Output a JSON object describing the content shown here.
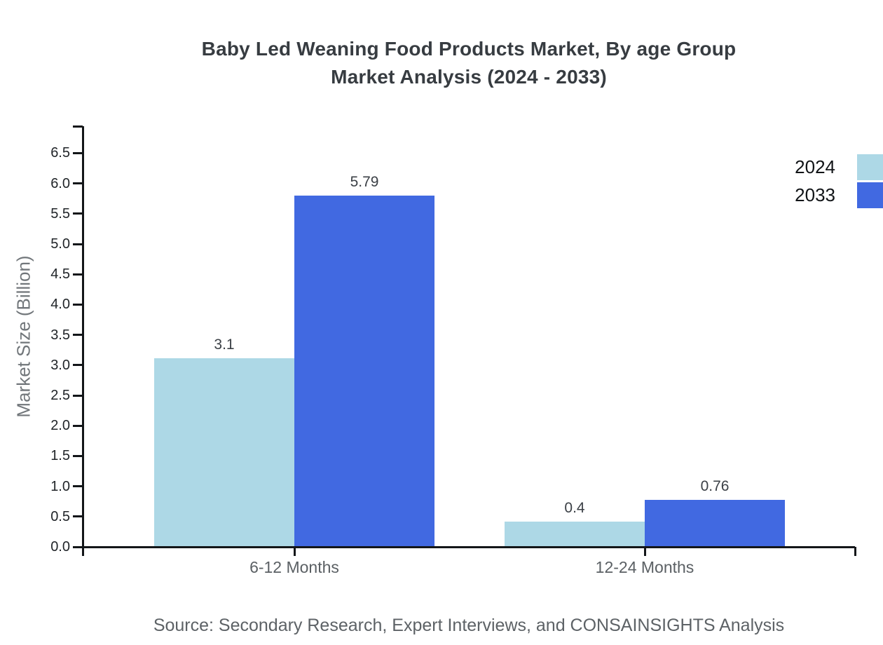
{
  "title": {
    "line1": "Baby Led Weaning Food Products Market, By age Group",
    "line2": "Market Analysis (2024 - 2033)"
  },
  "source_note": "Source: Secondary Research, Expert Interviews, and CONSAINSIGHTS Analysis",
  "chart_data": {
    "type": "bar",
    "title": "Baby Led Weaning Food Products Market, By age Group Market Analysis (2024 - 2033)",
    "categories": [
      "6-12 Months",
      "12-24 Months"
    ],
    "series": [
      {
        "name": "2024",
        "color": "#ADD8E6",
        "values": [
          3.1,
          0.4
        ]
      },
      {
        "name": "2033",
        "color": "#4169E1",
        "values": [
          5.79,
          0.76
        ]
      }
    ],
    "xlabel": "",
    "ylabel": "Market Size (Billion)",
    "ylim": [
      0,
      6.94
    ],
    "ytick_min": 0.0,
    "ytick_max": 6.5,
    "ytick_step": 0.5,
    "grid": false,
    "legend_position": "upper-right-outside",
    "bar_value_labels": [
      "3.1",
      "5.79",
      "0.4",
      "0.76"
    ],
    "axis_color": "#131619"
  }
}
